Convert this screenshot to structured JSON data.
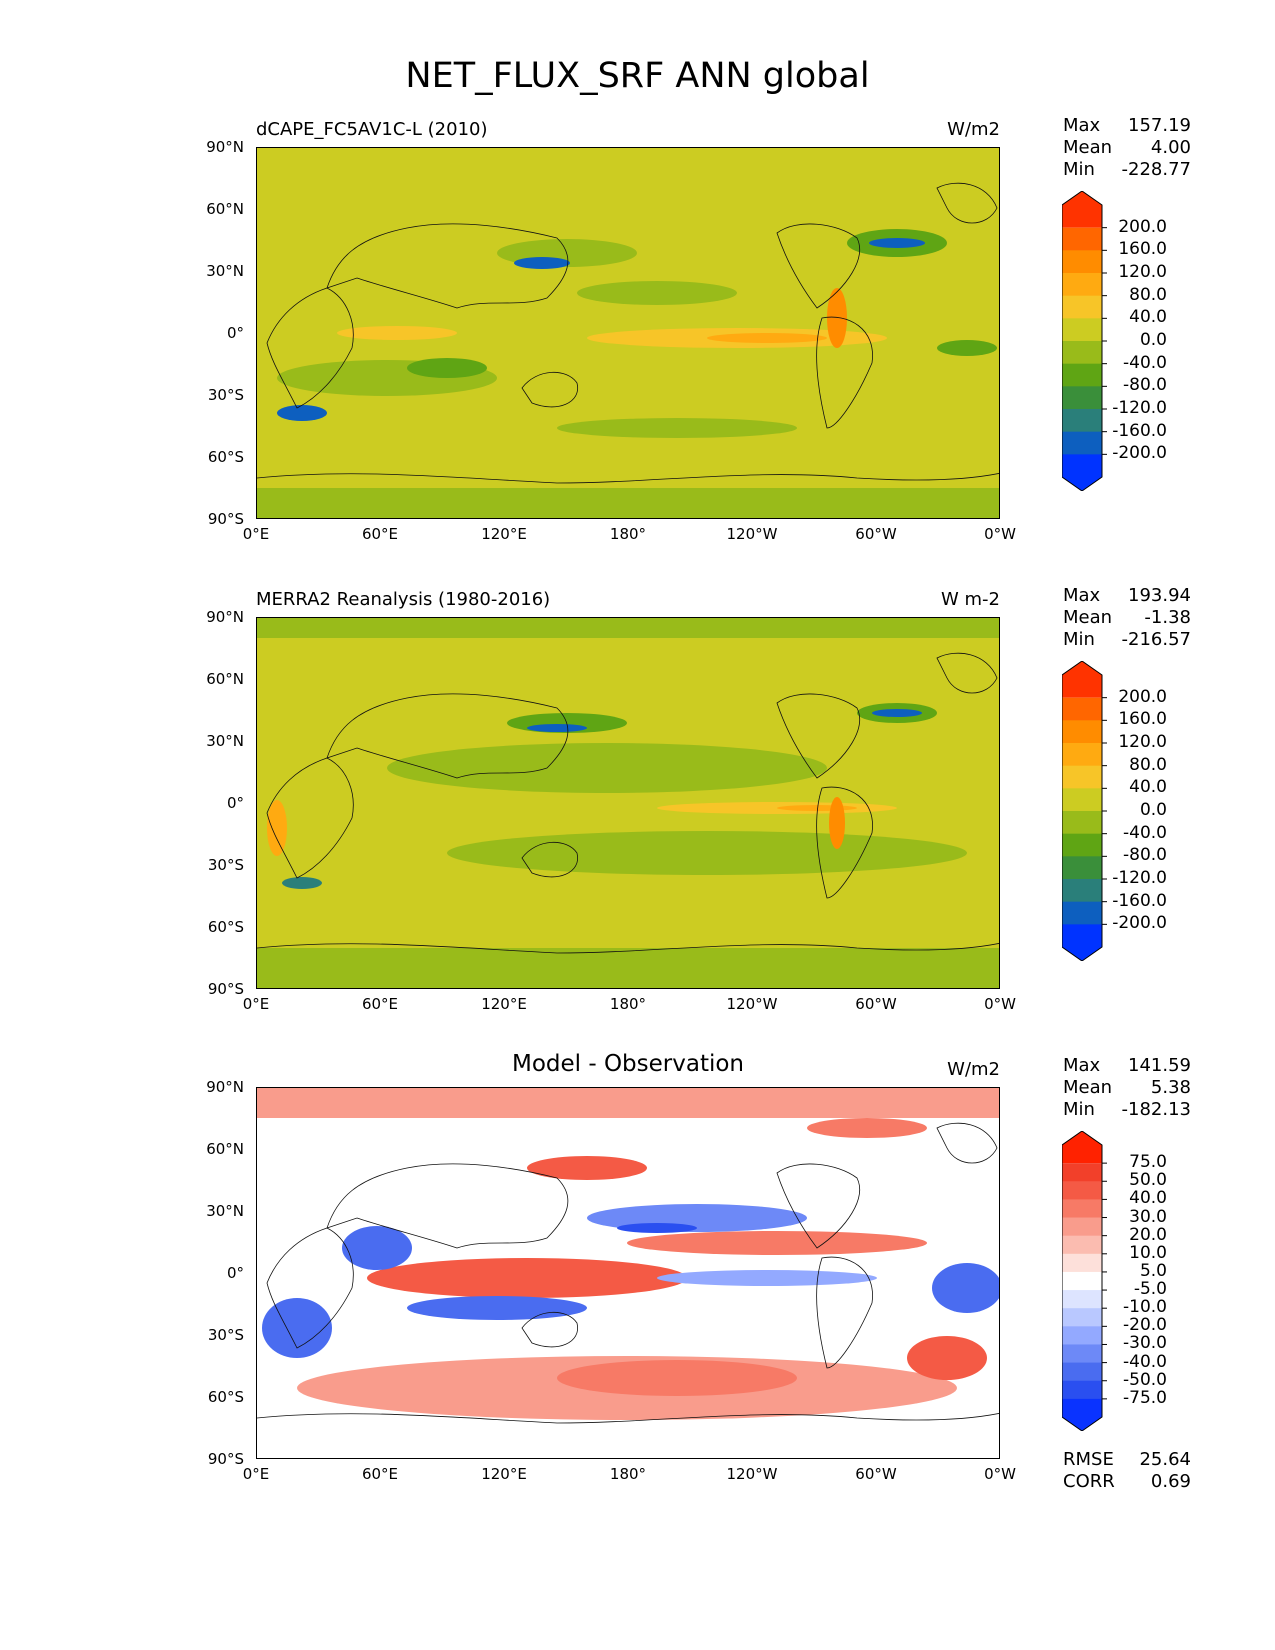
{
  "figure_title": "NET_FLUX_SRF ANN global",
  "axes": {
    "lat_ticks": [
      "90°N",
      "60°N",
      "30°N",
      "0°",
      "30°S",
      "60°S",
      "90°S"
    ],
    "lon_ticks": [
      "0°E",
      "60°E",
      "120°E",
      "180°",
      "120°W",
      "60°W",
      "0°W"
    ]
  },
  "panels": [
    {
      "left_title": "dCAPE_FC5AV1C-L (2010)",
      "center_title": "",
      "units": "W/m2",
      "stats": {
        "max_label": "Max",
        "max": "157.19",
        "mean_label": "Mean",
        "mean": "4.00",
        "min_label": "Min",
        "min": "-228.77"
      },
      "colorbar_labels": [
        "200.0",
        "160.0",
        "120.0",
        "80.0",
        "40.0",
        "0.0",
        "-40.0",
        "-80.0",
        "-120.0",
        "-160.0",
        "-200.0"
      ],
      "colorbar_colors": [
        "#ff3300",
        "#ff6600",
        "#ff8c00",
        "#ffaa11",
        "#f7c528",
        "#cccc22",
        "#99bb1a",
        "#5fa514",
        "#3a8f3a",
        "#2a7f7a",
        "#0d5fbf",
        "#0033ff"
      ]
    },
    {
      "left_title": "MERRA2 Reanalysis (1980-2016)",
      "center_title": "",
      "units": "W m-2",
      "stats": {
        "max_label": "Max",
        "max": "193.94",
        "mean_label": "Mean",
        "mean": "-1.38",
        "min_label": "Min",
        "min": "-216.57"
      },
      "colorbar_labels": [
        "200.0",
        "160.0",
        "120.0",
        "80.0",
        "40.0",
        "0.0",
        "-40.0",
        "-80.0",
        "-120.0",
        "-160.0",
        "-200.0"
      ],
      "colorbar_colors": [
        "#ff3300",
        "#ff6600",
        "#ff8c00",
        "#ffaa11",
        "#f7c528",
        "#cccc22",
        "#99bb1a",
        "#5fa514",
        "#3a8f3a",
        "#2a7f7a",
        "#0d5fbf",
        "#0033ff"
      ]
    },
    {
      "left_title": "",
      "center_title": "Model - Observation",
      "units": "W/m2",
      "stats": {
        "max_label": "Max",
        "max": "141.59",
        "mean_label": "Mean",
        "mean": "5.38",
        "min_label": "Min",
        "min": "-182.13"
      },
      "colorbar_labels": [
        "75.0",
        "50.0",
        "40.0",
        "30.0",
        "20.0",
        "10.0",
        "5.0",
        "-5.0",
        "-10.0",
        "-20.0",
        "-30.0",
        "-40.0",
        "-50.0",
        "-75.0"
      ],
      "colorbar_colors": [
        "#ff2200",
        "#f2402a",
        "#f45a45",
        "#f77a66",
        "#f99c8c",
        "#fbbcb0",
        "#fde0da",
        "#ffffff",
        "#dde4ff",
        "#b9c8ff",
        "#93a9ff",
        "#6d89f7",
        "#4a6cf0",
        "#2a4ff0",
        "#0a33ff"
      ],
      "metrics": {
        "rmse_label": "RMSE",
        "rmse": "25.64",
        "corr_label": "CORR",
        "corr": "0.69"
      }
    }
  ]
}
